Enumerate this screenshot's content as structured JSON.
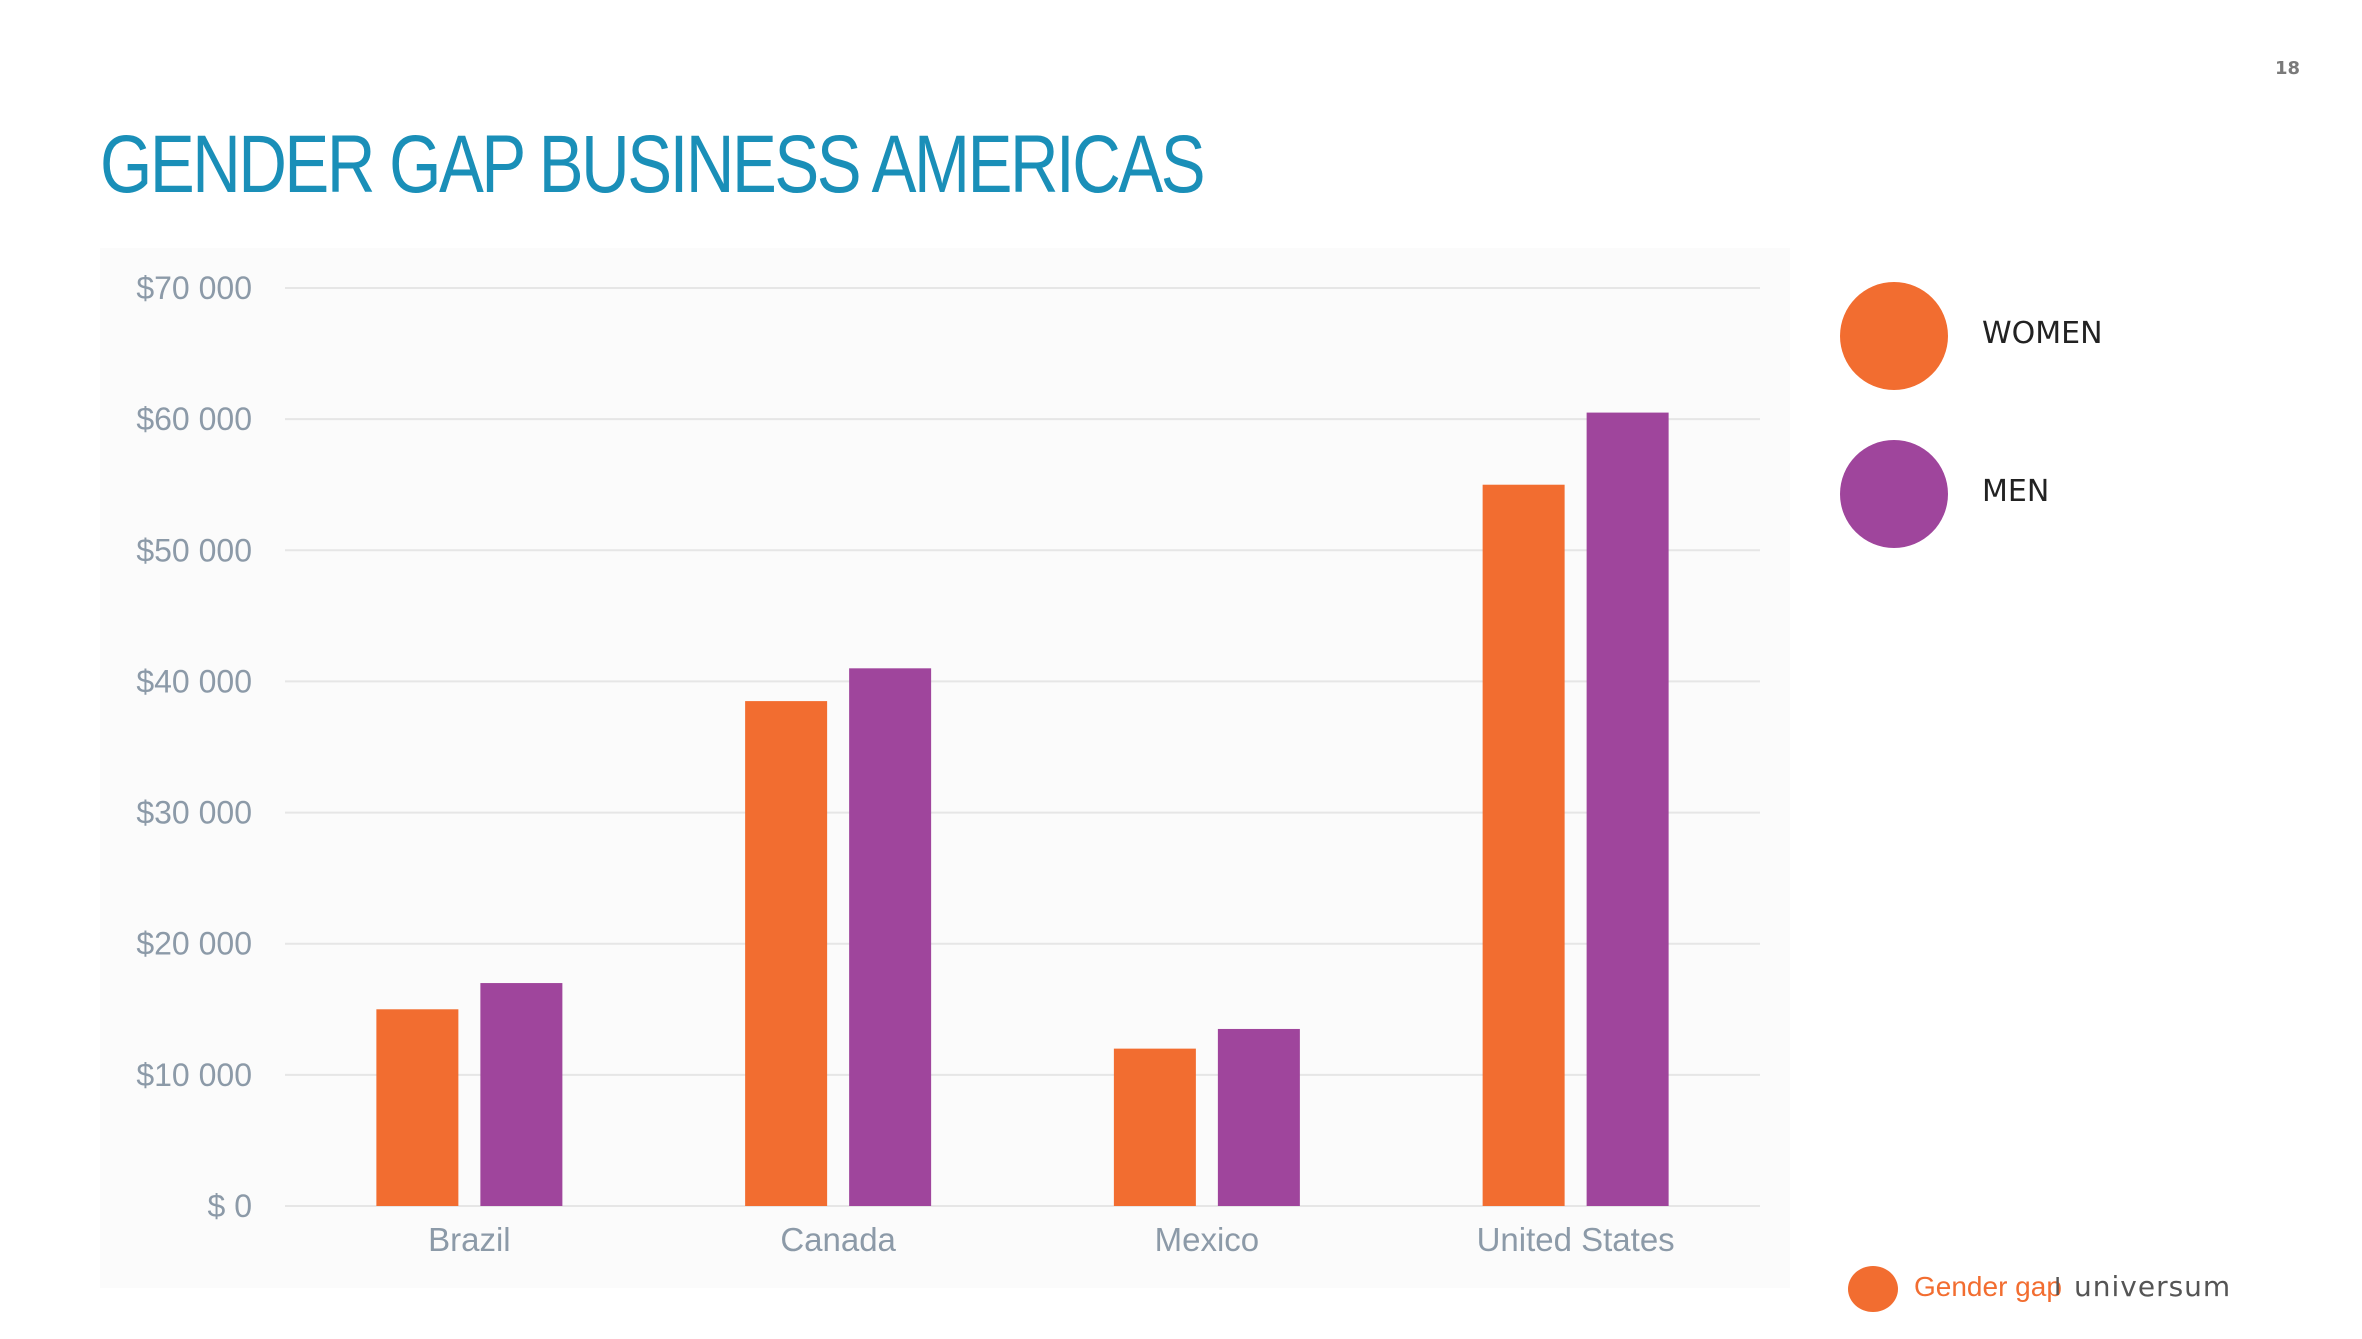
{
  "page": {
    "number": "18"
  },
  "title": "GENDER GAP BUSINESS AMERICAS",
  "colors": {
    "title": "#1a8fb8",
    "women": "#f26d30",
    "men": "#9f459c",
    "axis_text": "#8c9aa8",
    "grid": "#e6e6e6"
  },
  "chart_data": {
    "type": "bar",
    "title": "",
    "xlabel": "",
    "ylabel": "",
    "categories": [
      "Brazil",
      "Canada",
      "Mexico",
      "United States"
    ],
    "series": [
      {
        "name": "WOMEN",
        "values": [
          15000,
          38500,
          12000,
          55000
        ]
      },
      {
        "name": "MEN",
        "values": [
          17000,
          41000,
          13500,
          60500
        ]
      }
    ],
    "ylim": [
      0,
      70000
    ],
    "y_ticks": [
      {
        "value": 0,
        "label": "$ 0"
      },
      {
        "value": 10000,
        "label": "$10 000"
      },
      {
        "value": 20000,
        "label": "$20 000"
      },
      {
        "value": 30000,
        "label": "$30 000"
      },
      {
        "value": 40000,
        "label": "$40 000"
      },
      {
        "value": 50000,
        "label": "$50 000"
      },
      {
        "value": 60000,
        "label": "$60 000"
      },
      {
        "value": 70000,
        "label": "$70 000"
      }
    ],
    "grid": true,
    "legend_position": "right"
  },
  "legend": [
    {
      "label": "WOMEN",
      "color": "#f26d30"
    },
    {
      "label": "MEN",
      "color": "#9f459c"
    }
  ],
  "footer": {
    "section": "Gender gap",
    "separator": "I",
    "brand": "universum",
    "dot_color": "#f26d30"
  }
}
